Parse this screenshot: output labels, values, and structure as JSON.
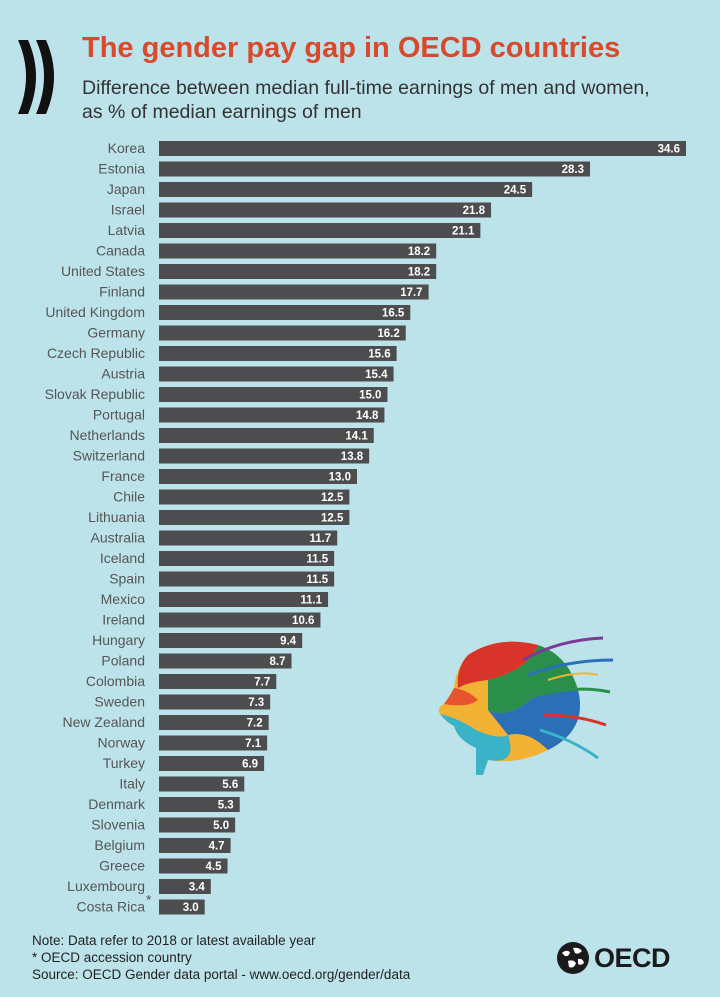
{
  "header": {
    "title": "The gender pay gap in OECD countries",
    "subtitle_line1": "Difference between median full-time earnings of men and women,",
    "subtitle_line2": "as % of median earnings of men"
  },
  "colors": {
    "background": "#bde3ea",
    "title": "#d9492b",
    "bar": "#4d4d4f"
  },
  "chart_data": {
    "type": "bar",
    "orientation": "horizontal",
    "title": "The gender pay gap in OECD countries",
    "xlabel": "Difference between median full-time earnings of men and women, as % of median earnings of men",
    "ylabel": "",
    "xlim": [
      0,
      34.6
    ],
    "grid": false,
    "categories": [
      "Korea",
      "Estonia",
      "Japan",
      "Israel",
      "Latvia",
      "Canada",
      "United States",
      "Finland",
      "United Kingdom",
      "Germany",
      "Czech Republic",
      "Austria",
      "Slovak Republic",
      "Portugal",
      "Netherlands",
      "Switzerland",
      "France",
      "Chile",
      "Lithuania",
      "Australia",
      "Iceland",
      "Spain",
      "Mexico",
      "Ireland",
      "Hungary",
      "Poland",
      "Colombia",
      "Sweden",
      "New Zealand",
      "Norway",
      "Turkey",
      "Italy",
      "Denmark",
      "Slovenia",
      "Belgium",
      "Greece",
      "Luxembourg",
      "Costa Rica"
    ],
    "values": [
      34.6,
      28.3,
      24.5,
      21.8,
      21.1,
      18.2,
      18.2,
      17.7,
      16.5,
      16.2,
      15.6,
      15.4,
      15.0,
      14.8,
      14.1,
      13.8,
      13.0,
      12.5,
      12.5,
      11.7,
      11.5,
      11.5,
      11.1,
      10.6,
      9.4,
      8.7,
      7.7,
      7.3,
      7.2,
      7.1,
      6.9,
      5.6,
      5.3,
      5.0,
      4.7,
      4.5,
      3.4,
      3.0
    ],
    "value_labels": [
      "34.6",
      "28.3",
      "24.5",
      "21.8",
      "21.1",
      "18.2",
      "18.2",
      "17.7",
      "16.5",
      "16.2",
      "15.6",
      "15.4",
      "15.0",
      "14.8",
      "14.1",
      "13.8",
      "13.0",
      "12.5",
      "12.5",
      "11.7",
      "11.5",
      "11.5",
      "11.1",
      "10.6",
      "9.4",
      "8.7",
      "7.7",
      "7.3",
      "7.2",
      "7.1",
      "6.9",
      "5.6",
      "5.3",
      "5.0",
      "4.7",
      "4.5",
      "3.4",
      "3.0"
    ],
    "annotations": [
      {
        "category": "Costa Rica",
        "marker": "*"
      }
    ]
  },
  "footer": {
    "note": "Note: Data refer to 2018 or latest available year",
    "accession": "* OECD accession country",
    "source": "Source: OECD Gender data portal - www.oecd.org/gender/data",
    "brand": "OECD"
  }
}
